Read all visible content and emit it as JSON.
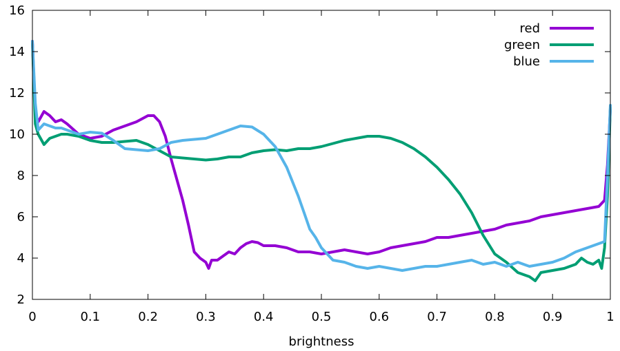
{
  "chart_data": {
    "type": "line",
    "title": "",
    "xlabel": "brightness",
    "ylabel": "",
    "xlim": [
      0,
      1
    ],
    "ylim": [
      2,
      16
    ],
    "xticks": [
      0,
      0.1,
      0.2,
      0.3,
      0.4,
      0.5,
      0.6,
      0.7,
      0.8,
      0.9,
      1
    ],
    "xtick_labels": [
      "0",
      "0.1",
      "0.2",
      "0.3",
      "0.4",
      "0.5",
      "0.6",
      "0.7",
      "0.8",
      "0.9",
      "1"
    ],
    "yticks": [
      2,
      4,
      6,
      8,
      10,
      12,
      14,
      16
    ],
    "ytick_labels": [
      "2",
      "4",
      "6",
      "8",
      "10",
      "12",
      "14",
      "16"
    ],
    "grid": false,
    "legend_position": "top-right",
    "series": [
      {
        "name": "red",
        "color": "#9400d3",
        "points": [
          [
            0,
            14.5
          ],
          [
            0.005,
            11.0
          ],
          [
            0.01,
            10.6
          ],
          [
            0.02,
            11.1
          ],
          [
            0.03,
            10.9
          ],
          [
            0.04,
            10.6
          ],
          [
            0.05,
            10.7
          ],
          [
            0.06,
            10.5
          ],
          [
            0.08,
            10.0
          ],
          [
            0.1,
            9.8
          ],
          [
            0.12,
            9.9
          ],
          [
            0.14,
            10.2
          ],
          [
            0.16,
            10.4
          ],
          [
            0.18,
            10.6
          ],
          [
            0.2,
            10.9
          ],
          [
            0.21,
            10.9
          ],
          [
            0.22,
            10.6
          ],
          [
            0.23,
            9.9
          ],
          [
            0.24,
            8.8
          ],
          [
            0.25,
            7.8
          ],
          [
            0.26,
            6.8
          ],
          [
            0.27,
            5.6
          ],
          [
            0.28,
            4.3
          ],
          [
            0.29,
            4.0
          ],
          [
            0.3,
            3.8
          ],
          [
            0.305,
            3.5
          ],
          [
            0.31,
            3.9
          ],
          [
            0.32,
            3.9
          ],
          [
            0.33,
            4.1
          ],
          [
            0.34,
            4.3
          ],
          [
            0.35,
            4.2
          ],
          [
            0.36,
            4.5
          ],
          [
            0.37,
            4.7
          ],
          [
            0.38,
            4.8
          ],
          [
            0.39,
            4.75
          ],
          [
            0.4,
            4.6
          ],
          [
            0.42,
            4.6
          ],
          [
            0.44,
            4.5
          ],
          [
            0.46,
            4.3
          ],
          [
            0.48,
            4.3
          ],
          [
            0.5,
            4.2
          ],
          [
            0.52,
            4.3
          ],
          [
            0.54,
            4.4
          ],
          [
            0.56,
            4.3
          ],
          [
            0.58,
            4.2
          ],
          [
            0.6,
            4.3
          ],
          [
            0.62,
            4.5
          ],
          [
            0.64,
            4.6
          ],
          [
            0.66,
            4.7
          ],
          [
            0.68,
            4.8
          ],
          [
            0.7,
            5.0
          ],
          [
            0.72,
            5.0
          ],
          [
            0.74,
            5.1
          ],
          [
            0.76,
            5.2
          ],
          [
            0.78,
            5.3
          ],
          [
            0.8,
            5.4
          ],
          [
            0.82,
            5.6
          ],
          [
            0.84,
            5.7
          ],
          [
            0.86,
            5.8
          ],
          [
            0.88,
            6.0
          ],
          [
            0.9,
            6.1
          ],
          [
            0.92,
            6.2
          ],
          [
            0.94,
            6.3
          ],
          [
            0.96,
            6.4
          ],
          [
            0.98,
            6.5
          ],
          [
            0.99,
            6.8
          ],
          [
            0.995,
            8.5
          ],
          [
            1.0,
            11.2
          ]
        ]
      },
      {
        "name": "green",
        "color": "#009e73",
        "points": [
          [
            0,
            14.4
          ],
          [
            0.005,
            10.5
          ],
          [
            0.01,
            10.0
          ],
          [
            0.02,
            9.5
          ],
          [
            0.03,
            9.8
          ],
          [
            0.04,
            9.9
          ],
          [
            0.05,
            10.0
          ],
          [
            0.06,
            10.0
          ],
          [
            0.08,
            9.9
          ],
          [
            0.1,
            9.7
          ],
          [
            0.12,
            9.6
          ],
          [
            0.14,
            9.6
          ],
          [
            0.16,
            9.65
          ],
          [
            0.18,
            9.7
          ],
          [
            0.2,
            9.5
          ],
          [
            0.22,
            9.2
          ],
          [
            0.24,
            8.9
          ],
          [
            0.26,
            8.85
          ],
          [
            0.28,
            8.8
          ],
          [
            0.3,
            8.75
          ],
          [
            0.32,
            8.8
          ],
          [
            0.34,
            8.9
          ],
          [
            0.36,
            8.9
          ],
          [
            0.38,
            9.1
          ],
          [
            0.4,
            9.2
          ],
          [
            0.42,
            9.25
          ],
          [
            0.44,
            9.2
          ],
          [
            0.46,
            9.3
          ],
          [
            0.48,
            9.3
          ],
          [
            0.5,
            9.4
          ],
          [
            0.52,
            9.55
          ],
          [
            0.54,
            9.7
          ],
          [
            0.56,
            9.8
          ],
          [
            0.58,
            9.9
          ],
          [
            0.6,
            9.9
          ],
          [
            0.62,
            9.8
          ],
          [
            0.64,
            9.6
          ],
          [
            0.66,
            9.3
          ],
          [
            0.68,
            8.9
          ],
          [
            0.7,
            8.4
          ],
          [
            0.72,
            7.8
          ],
          [
            0.74,
            7.1
          ],
          [
            0.76,
            6.2
          ],
          [
            0.78,
            5.1
          ],
          [
            0.8,
            4.2
          ],
          [
            0.82,
            3.8
          ],
          [
            0.84,
            3.3
          ],
          [
            0.86,
            3.1
          ],
          [
            0.87,
            2.9
          ],
          [
            0.88,
            3.3
          ],
          [
            0.9,
            3.4
          ],
          [
            0.92,
            3.5
          ],
          [
            0.94,
            3.7
          ],
          [
            0.95,
            4.0
          ],
          [
            0.96,
            3.8
          ],
          [
            0.97,
            3.7
          ],
          [
            0.98,
            3.9
          ],
          [
            0.985,
            3.5
          ],
          [
            0.99,
            4.5
          ],
          [
            0.995,
            7.0
          ],
          [
            1.0,
            11.3
          ]
        ]
      },
      {
        "name": "blue",
        "color": "#56b4e9",
        "points": [
          [
            0,
            14.5
          ],
          [
            0.005,
            11.5
          ],
          [
            0.01,
            10.2
          ],
          [
            0.02,
            10.5
          ],
          [
            0.03,
            10.4
          ],
          [
            0.04,
            10.3
          ],
          [
            0.05,
            10.3
          ],
          [
            0.06,
            10.2
          ],
          [
            0.08,
            10.0
          ],
          [
            0.1,
            10.1
          ],
          [
            0.12,
            10.05
          ],
          [
            0.14,
            9.7
          ],
          [
            0.16,
            9.3
          ],
          [
            0.18,
            9.25
          ],
          [
            0.2,
            9.2
          ],
          [
            0.22,
            9.3
          ],
          [
            0.24,
            9.6
          ],
          [
            0.26,
            9.7
          ],
          [
            0.28,
            9.75
          ],
          [
            0.3,
            9.8
          ],
          [
            0.32,
            10.0
          ],
          [
            0.34,
            10.2
          ],
          [
            0.36,
            10.4
          ],
          [
            0.38,
            10.35
          ],
          [
            0.4,
            10.0
          ],
          [
            0.42,
            9.4
          ],
          [
            0.44,
            8.4
          ],
          [
            0.46,
            7.0
          ],
          [
            0.47,
            6.2
          ],
          [
            0.48,
            5.4
          ],
          [
            0.49,
            5.0
          ],
          [
            0.5,
            4.5
          ],
          [
            0.51,
            4.2
          ],
          [
            0.52,
            3.9
          ],
          [
            0.54,
            3.8
          ],
          [
            0.56,
            3.6
          ],
          [
            0.58,
            3.5
          ],
          [
            0.6,
            3.6
          ],
          [
            0.62,
            3.5
          ],
          [
            0.64,
            3.4
          ],
          [
            0.66,
            3.5
          ],
          [
            0.68,
            3.6
          ],
          [
            0.7,
            3.6
          ],
          [
            0.72,
            3.7
          ],
          [
            0.74,
            3.8
          ],
          [
            0.76,
            3.9
          ],
          [
            0.78,
            3.7
          ],
          [
            0.8,
            3.8
          ],
          [
            0.82,
            3.6
          ],
          [
            0.84,
            3.8
          ],
          [
            0.86,
            3.6
          ],
          [
            0.88,
            3.7
          ],
          [
            0.9,
            3.8
          ],
          [
            0.92,
            4.0
          ],
          [
            0.94,
            4.3
          ],
          [
            0.96,
            4.5
          ],
          [
            0.98,
            4.7
          ],
          [
            0.99,
            4.8
          ],
          [
            0.995,
            8.0
          ],
          [
            1.0,
            11.4
          ]
        ]
      }
    ]
  }
}
